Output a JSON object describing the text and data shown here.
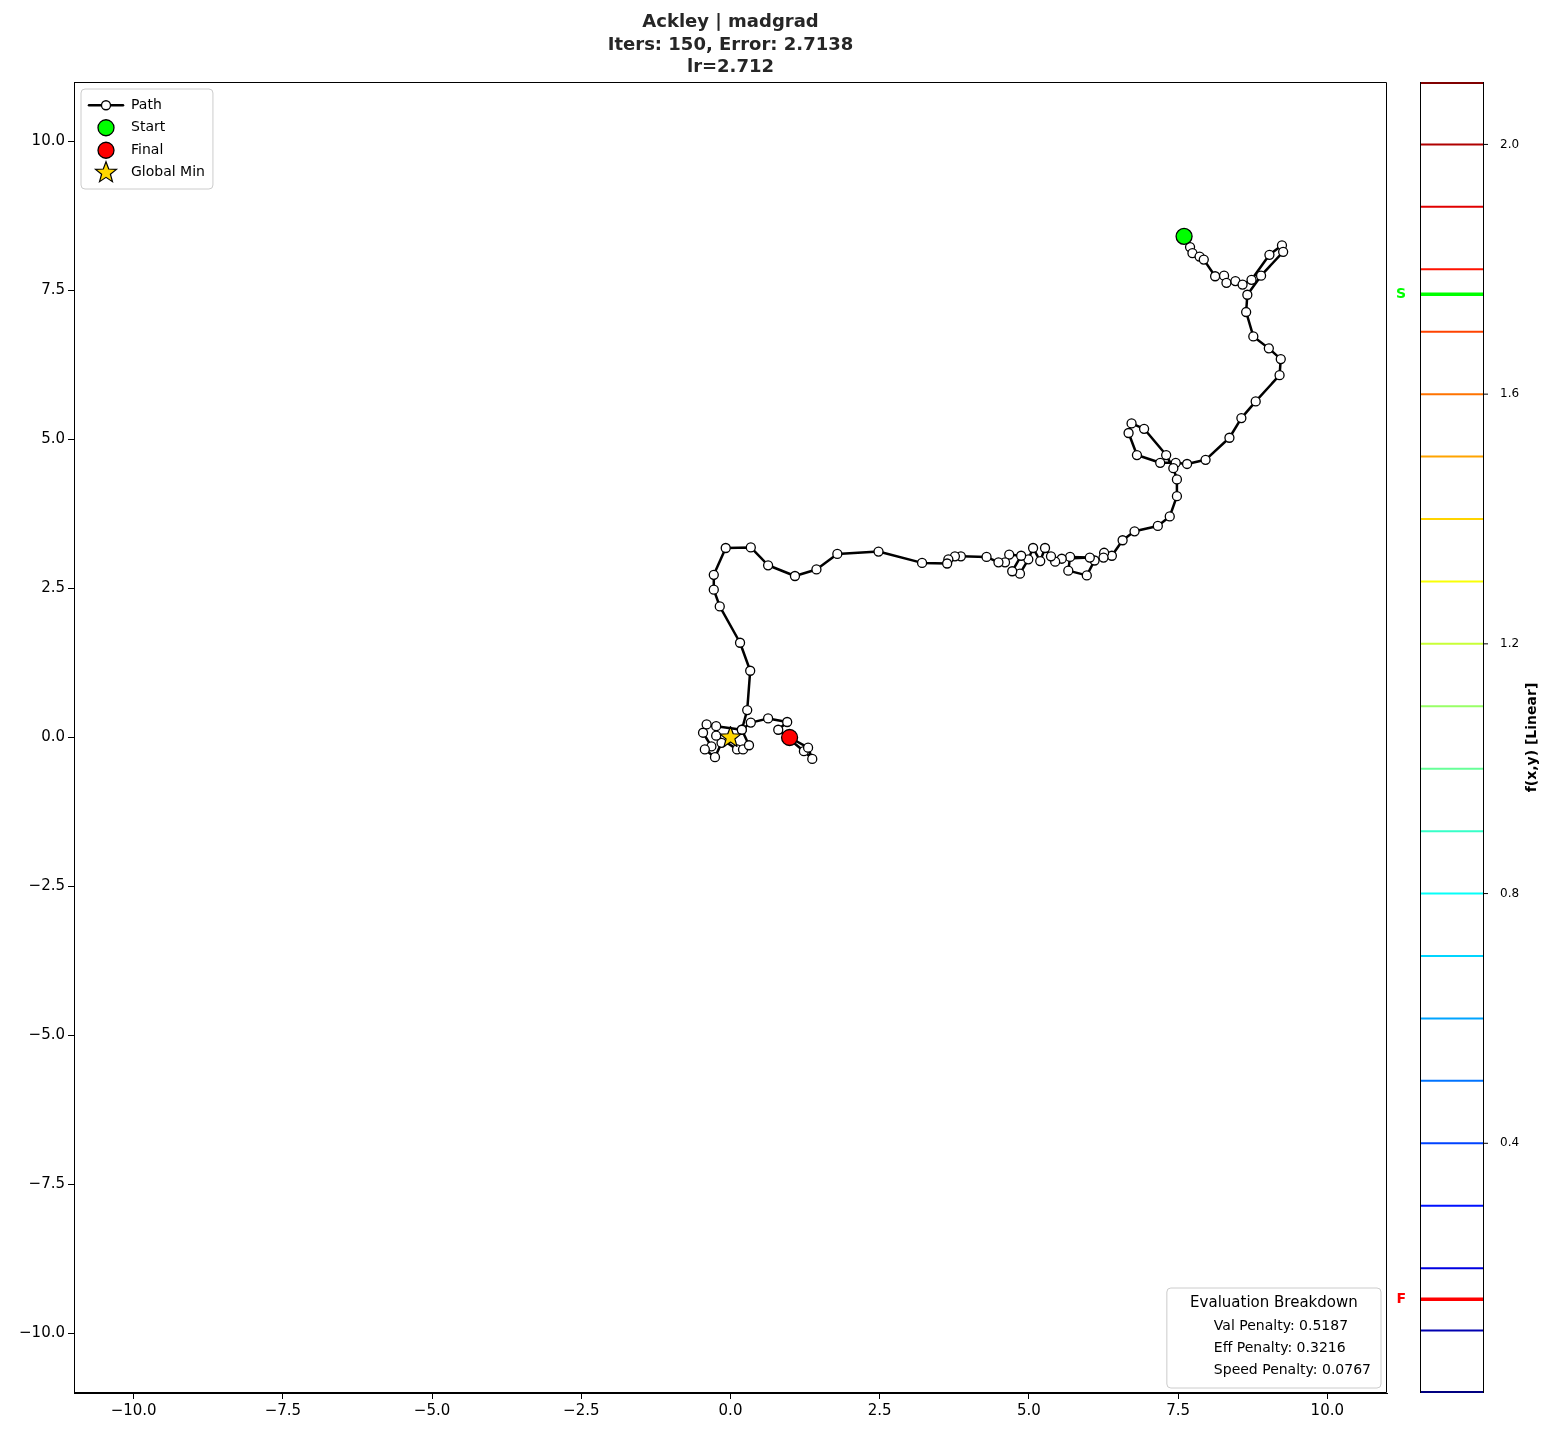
{
  "chart_data": {
    "type": "line",
    "title": "Ackley | madgrad\nIters: 150, Error: 2.7138\nlr=2.712",
    "y2label": "f(x,y) [Linear]",
    "xlim": [
      -11,
      11
    ],
    "ylim": [
      -11,
      11
    ],
    "xticks": [
      {
        "value": -10,
        "label": "−10.0"
      },
      {
        "value": -7.5,
        "label": "−7.5"
      },
      {
        "value": -5,
        "label": "−5.0"
      },
      {
        "value": -2.5,
        "label": "−2.5"
      },
      {
        "value": 0,
        "label": "0.0"
      },
      2.5,
      {
        "value": 5,
        "label": "5.0"
      },
      7.5,
      {
        "value": 10,
        "label": "10.0"
      }
    ],
    "yticks": [
      {
        "value": -10,
        "label": "−10.0"
      },
      {
        "value": -7.5,
        "label": "−7.5"
      },
      {
        "value": -5,
        "label": "−5.0"
      },
      {
        "value": -2.5,
        "label": "−2.5"
      },
      {
        "value": 0,
        "label": "0.0"
      },
      2.5,
      {
        "value": 5,
        "label": "5.0"
      },
      7.5,
      {
        "value": 10,
        "label": "10.0"
      }
    ],
    "y2lim": [
      0,
      2.1
    ],
    "y2ticks": [
      0.4,
      0.8,
      1.2,
      1.6,
      {
        "value": 2,
        "label": "2.0"
      }
    ],
    "series": [
      {
        "name": "Path",
        "type": "line",
        "color": "#000000",
        "x": [
          7.6,
          7.7,
          7.74,
          7.86,
          7.93,
          8.12,
          8.27,
          8.31,
          8.46,
          8.58,
          8.73,
          9.03,
          9.24,
          9.26,
          8.89,
          8.66,
          8.64,
          8.76,
          9.02,
          9.22,
          9.2,
          8.8,
          8.56,
          8.36,
          7.96,
          7.65,
          7.46,
          7.2,
          6.81,
          6.67,
          6.72,
          6.93,
          7.3,
          7.42,
          7.48,
          7.48,
          7.36,
          7.16,
          6.77,
          6.57,
          6.39,
          6.26,
          6.25,
          6.1,
          5.97,
          5.66,
          5.69,
          6.02,
          5.55,
          5.44,
          5.37,
          5.27,
          5.19,
          5.07,
          4.99,
          4.85,
          4.72,
          4.87,
          4.67,
          4.6,
          4.49,
          4.29,
          3.86,
          3.76,
          3.65,
          3.63,
          3.21,
          2.48,
          1.79,
          1.44,
          1.08,
          0.63,
          0.34,
          -0.08,
          -0.28,
          -0.28,
          -0.18,
          0.16,
          0.33,
          0.28,
          0.19,
          -0.24,
          -0.4,
          -0.46,
          -0.32,
          -0.43,
          -0.26,
          -0.15,
          -0.24,
          0.11,
          0.21,
          0.31,
          0.19,
          0.34,
          0.63,
          0.95,
          0.8,
          1.23,
          1.37,
          1.3,
          0.99
        ],
        "values": [
          8.41,
          8.23,
          8.13,
          8.07,
          8.02,
          7.74,
          7.75,
          7.63,
          7.66,
          7.6,
          7.68,
          8.1,
          8.26,
          8.15,
          7.75,
          7.43,
          7.14,
          6.73,
          6.53,
          6.35,
          6.08,
          5.64,
          5.36,
          5.03,
          4.66,
          4.59,
          4.61,
          4.61,
          4.74,
          5.11,
          5.27,
          5.18,
          4.74,
          4.52,
          4.33,
          4.05,
          3.71,
          3.55,
          3.46,
          3.31,
          3.05,
          3.1,
          3.02,
          2.97,
          2.72,
          2.8,
          3.03,
          3.02,
          3.0,
          2.95,
          3.04,
          3.18,
          2.96,
          3.18,
          2.99,
          2.75,
          2.79,
          3.05,
          3.07,
          2.94,
          2.94,
          3.03,
          3.04,
          3.04,
          2.99,
          2.92,
          2.93,
          3.12,
          3.08,
          2.82,
          2.71,
          2.89,
          3.19,
          3.18,
          2.73,
          2.48,
          2.2,
          1.59,
          1.12,
          0.46,
          0.13,
          0.19,
          0.22,
          0.08,
          -0.15,
          -0.2,
          -0.33,
          -0.09,
          0.03,
          -0.2,
          -0.2,
          -0.13,
          0.13,
          0.25,
          0.32,
          0.26,
          0.13,
          -0.23,
          -0.36,
          -0.17,
          0.0
        ]
      },
      {
        "name": "Start",
        "type": "scatter",
        "color": "#00ff00",
        "x": [
          7.6
        ],
        "values": [
          8.41
        ]
      },
      {
        "name": "Final",
        "type": "scatter",
        "color": "#ff0000",
        "x": [
          0.99
        ],
        "values": [
          0.0
        ]
      },
      {
        "name": "Global Min",
        "type": "scatter",
        "color": "#ffd700",
        "marker": "star",
        "x": [
          0
        ],
        "values": [
          0
        ]
      }
    ],
    "ref_lines": [
      {
        "axis": "y2",
        "value": 1.76,
        "label": "S",
        "color": "#00ff00"
      },
      {
        "axis": "y2",
        "value": 0.15,
        "label": "F",
        "color": "#ff0000"
      }
    ],
    "annotations": [
      "Evaluation Breakdown",
      "Val Penalty: 0.5187",
      "Eff Penalty: 0.3216",
      "Speed Penalty: 0.0767"
    ],
    "legend": "top left",
    "marker": "circle",
    "line_style": "solid"
  }
}
